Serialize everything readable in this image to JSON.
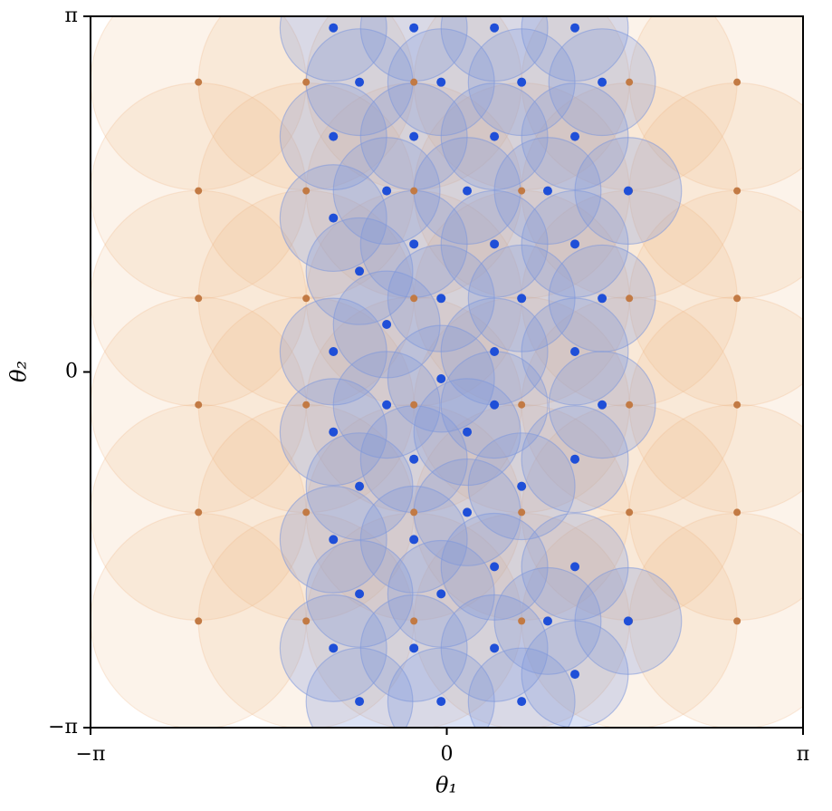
{
  "chart_data": {
    "type": "scatter",
    "xlabel": "θ₁",
    "ylabel": "θ₂",
    "xlim": [
      -3.14159,
      3.14159
    ],
    "ylim": [
      -3.14159,
      3.14159
    ],
    "xticks": [
      {
        "value": -3.14159,
        "label": "−π"
      },
      0,
      {
        "value": 3.14159,
        "label": "π"
      }
    ],
    "yticks": [
      {
        "value": -3.14159,
        "label": "−π"
      },
      0,
      {
        "value": 3.14159,
        "label": "π"
      }
    ],
    "grid": false,
    "series": [
      {
        "color": "#c27a44",
        "fill": "#efb585",
        "radius": 0.95,
        "x": [
          -2.19,
          -1.24,
          -0.29,
          0.66,
          1.61,
          2.56,
          -2.19,
          -1.24,
          -0.29,
          0.66,
          1.61,
          2.56,
          -2.19,
          -1.24,
          -0.29,
          0.66,
          1.61,
          2.56,
          -2.19,
          -1.24,
          -0.29,
          0.66,
          1.61,
          2.56,
          -2.19,
          -1.24,
          -0.29,
          0.66,
          1.61,
          2.56,
          -2.19,
          -1.24,
          -0.29,
          0.66,
          1.61,
          2.56
        ],
        "values": [
          2.56,
          2.56,
          2.56,
          2.56,
          2.56,
          2.56,
          1.6,
          1.6,
          1.6,
          1.6,
          1.6,
          1.6,
          0.65,
          0.65,
          0.65,
          0.65,
          0.65,
          0.65,
          -0.29,
          -0.29,
          -0.29,
          -0.29,
          -0.29,
          -0.29,
          -1.24,
          -1.24,
          -1.24,
          -1.24,
          -1.24,
          -1.24,
          -2.2,
          -2.2,
          -2.2,
          -2.2,
          -2.2,
          -2.2
        ]
      },
      {
        "color": "#1f4fd8",
        "fill": "#7d98dc",
        "radius": 0.47,
        "x": [
          -1.0,
          -0.29,
          0.42,
          1.13,
          -0.77,
          -0.05,
          0.66,
          1.37,
          -1.0,
          -0.29,
          0.42,
          1.13,
          -0.53,
          0.18,
          0.89,
          1.6,
          -1.0,
          -0.29,
          0.42,
          1.13,
          -0.77,
          -0.05,
          0.66,
          1.37,
          -0.53,
          -1.0,
          0.42,
          1.13,
          -0.05,
          -0.53,
          0.42,
          1.37,
          -1.0,
          0.18,
          -0.29,
          1.13,
          -0.77,
          0.66,
          0.18,
          -1.0,
          -0.29,
          0.42,
          1.13,
          -0.77,
          -0.05,
          0.89,
          1.6,
          -1.0,
          -0.29,
          0.42,
          1.13,
          -0.77,
          -0.05,
          0.66
        ],
        "values": [
          3.04,
          3.04,
          3.04,
          3.04,
          2.56,
          2.56,
          2.56,
          2.56,
          2.08,
          2.08,
          2.08,
          2.08,
          1.6,
          1.6,
          1.6,
          1.6,
          1.36,
          1.13,
          1.13,
          1.13,
          0.89,
          0.65,
          0.65,
          0.65,
          0.42,
          0.18,
          0.18,
          0.18,
          -0.06,
          -0.29,
          -0.29,
          -0.29,
          -0.53,
          -0.53,
          -0.77,
          -0.77,
          -1.01,
          -1.01,
          -1.24,
          -1.48,
          -1.48,
          -1.72,
          -1.72,
          -1.96,
          -1.96,
          -2.2,
          -2.2,
          -2.44,
          -2.44,
          -2.44,
          -2.67,
          -2.91,
          -2.91,
          -2.91
        ]
      }
    ]
  }
}
